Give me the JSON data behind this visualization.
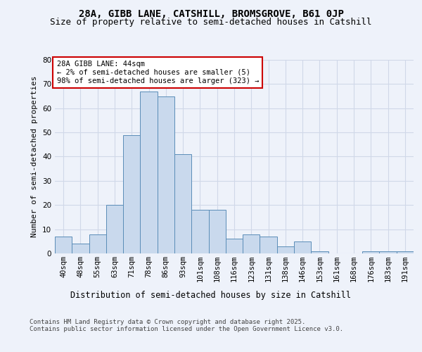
{
  "title1": "28A, GIBB LANE, CATSHILL, BROMSGROVE, B61 0JP",
  "title2": "Size of property relative to semi-detached houses in Catshill",
  "xlabel": "Distribution of semi-detached houses by size in Catshill",
  "ylabel": "Number of semi-detached properties",
  "categories": [
    "40sqm",
    "48sqm",
    "55sqm",
    "63sqm",
    "71sqm",
    "78sqm",
    "86sqm",
    "93sqm",
    "101sqm",
    "108sqm",
    "116sqm",
    "123sqm",
    "131sqm",
    "138sqm",
    "146sqm",
    "153sqm",
    "161sqm",
    "168sqm",
    "176sqm",
    "183sqm",
    "191sqm"
  ],
  "values": [
    7,
    4,
    8,
    20,
    49,
    67,
    65,
    41,
    18,
    18,
    6,
    8,
    7,
    3,
    5,
    1,
    0,
    0,
    1,
    1,
    1
  ],
  "bar_color": "#c9d9ed",
  "bar_edge_color": "#5b8db8",
  "annotation_box_text": "28A GIBB LANE: 44sqm\n← 2% of semi-detached houses are smaller (5)\n98% of semi-detached houses are larger (323) →",
  "annotation_box_color": "#ffffff",
  "annotation_box_edge_color": "#cc0000",
  "ylim": [
    0,
    80
  ],
  "yticks": [
    0,
    10,
    20,
    30,
    40,
    50,
    60,
    70,
    80
  ],
  "grid_color": "#d0d8e8",
  "background_color": "#eef2fa",
  "footer_text": "Contains HM Land Registry data © Crown copyright and database right 2025.\nContains public sector information licensed under the Open Government Licence v3.0.",
  "title1_fontsize": 10,
  "title2_fontsize": 9,
  "xlabel_fontsize": 8.5,
  "ylabel_fontsize": 8,
  "tick_fontsize": 7.5,
  "annotation_fontsize": 7.5,
  "footer_fontsize": 6.5
}
